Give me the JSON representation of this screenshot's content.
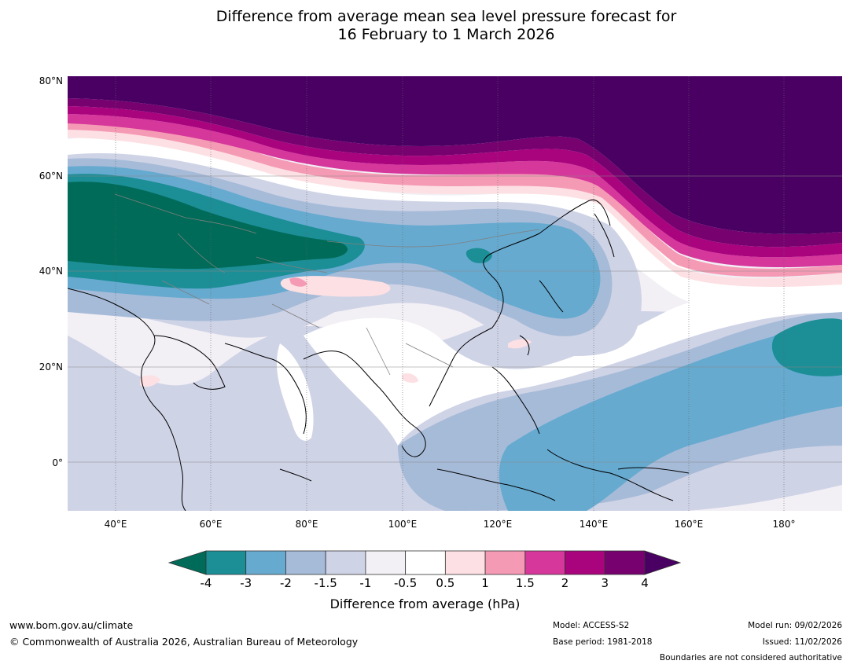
{
  "title": {
    "line1": "Difference from average mean sea level pressure forecast for",
    "line2": "16 February to 1 March 2026"
  },
  "map": {
    "lat_labels": [
      "80°N",
      "60°N",
      "40°N",
      "20°N",
      "0°"
    ],
    "lon_labels": [
      "40°E",
      "60°E",
      "80°E",
      "100°E",
      "120°E",
      "140°E",
      "160°E",
      "180°"
    ],
    "colors": {
      "lt_-4": "#006b58",
      "-4_-3": "#1c8e96",
      "-3_-2": "#66aad0",
      "-2_-1.5": "#a6bbd8",
      "-1.5_-1": "#cfd3e6",
      "-1_-0.5": "#f2eff5",
      "-0.5_0.5": "#ffffff",
      "0.5_1": "#fde0e3",
      "1_1.5": "#f59ab5",
      "1.5_2": "#d6379a",
      "2_3": "#a9037e",
      "3_4": "#76016f",
      "gt_4": "#4a0063",
      "coast": "#000000",
      "border": "#808080"
    }
  },
  "colorbar": {
    "ticks": [
      "-4",
      "-3",
      "-2",
      "-1.5",
      "-1",
      "-0.5",
      "0.5",
      "1",
      "1.5",
      "2",
      "3",
      "4"
    ],
    "colors": [
      "#1c8e96",
      "#66aad0",
      "#a6bbd8",
      "#cfd3e6",
      "#f2eff5",
      "#ffffff",
      "#fde0e3",
      "#f59ab5",
      "#d6379a",
      "#a9037e",
      "#76016f"
    ],
    "under_color": "#006b58",
    "over_color": "#4a0063",
    "label": "Difference from average (hPa)"
  },
  "footer": {
    "website": "www.bom.gov.au/climate",
    "copyright": "© Commonwealth of Australia 2026, Australian Bureau of Meteorology",
    "model": "Model: ACCESS-S2",
    "base_period": "Base period: 1981-2018",
    "model_run": "Model run: 09/02/2026",
    "issued": "Issued: 11/02/2026",
    "disclaimer": "Boundaries are not considered authoritative"
  }
}
